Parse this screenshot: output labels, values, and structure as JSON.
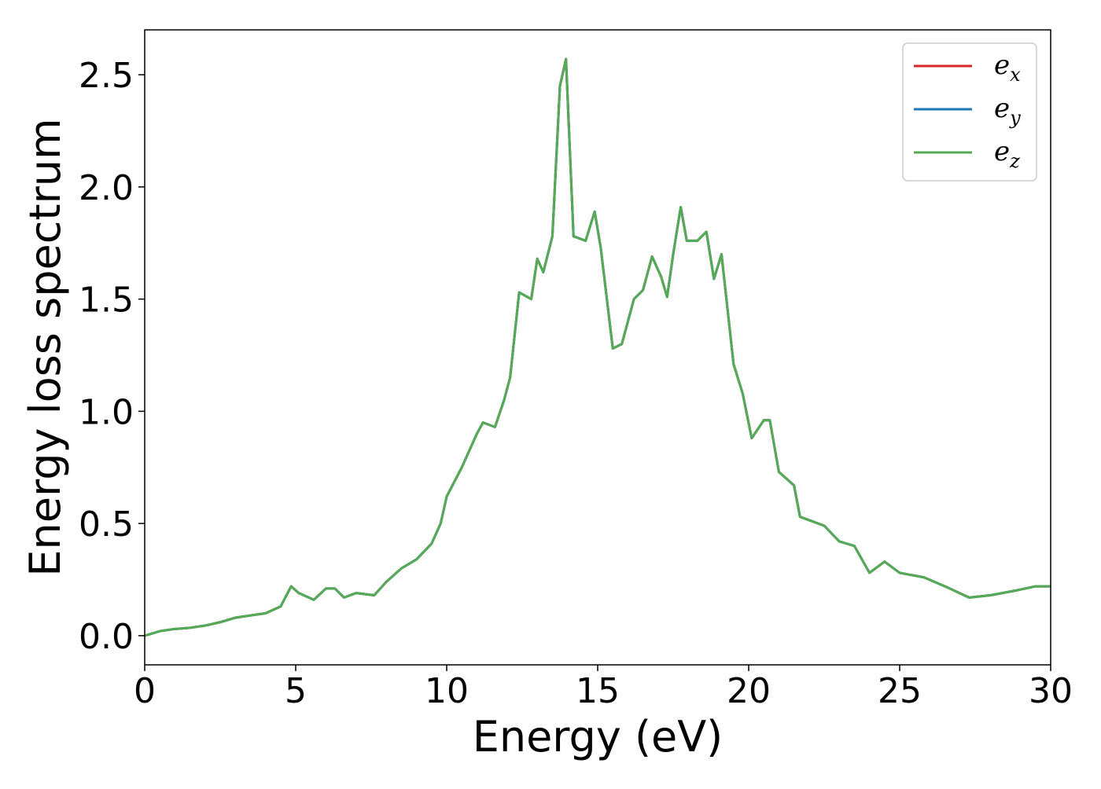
{
  "chart_data": {
    "type": "line",
    "title": "",
    "xlabel": "Energy (eV)",
    "ylabel": "Energy loss spectrum",
    "xlim": [
      0,
      30
    ],
    "ylim": [
      -0.13,
      2.7
    ],
    "xticks": [
      0,
      5,
      10,
      15,
      20,
      25,
      30
    ],
    "xtick_labels": [
      "0",
      "5",
      "10",
      "15",
      "20",
      "25",
      "30"
    ],
    "yticks": [
      0.0,
      0.5,
      1.0,
      1.5,
      2.0,
      2.5
    ],
    "ytick_labels": [
      "0.0",
      "0.5",
      "1.0",
      "1.5",
      "2.0",
      "2.5"
    ],
    "grid": false,
    "legend_position": "top-right",
    "x": [
      0,
      0.5,
      1.0,
      1.5,
      2.0,
      2.5,
      3.0,
      3.5,
      4.0,
      4.5,
      4.85,
      5.1,
      5.6,
      6.0,
      6.3,
      6.6,
      7.0,
      7.6,
      8.0,
      8.5,
      9.0,
      9.5,
      9.8,
      10.0,
      10.5,
      11.0,
      11.2,
      11.6,
      11.9,
      12.1,
      12.4,
      12.8,
      13.0,
      13.2,
      13.5,
      13.75,
      13.95,
      14.2,
      14.6,
      14.9,
      15.1,
      15.5,
      15.8,
      16.2,
      16.5,
      16.8,
      17.1,
      17.3,
      17.5,
      17.75,
      17.95,
      18.3,
      18.6,
      18.85,
      19.1,
      19.5,
      19.8,
      20.1,
      20.5,
      20.7,
      21.0,
      21.5,
      21.7,
      22.5,
      23.0,
      23.5,
      24.0,
      24.5,
      25.0,
      25.8,
      26.5,
      27.3,
      28.0,
      28.8,
      29.5,
      30.0
    ],
    "series": [
      {
        "name": "e_x",
        "color": "#d62728",
        "y": [
          0.0,
          0.02,
          0.03,
          0.035,
          0.045,
          0.06,
          0.08,
          0.09,
          0.1,
          0.13,
          0.22,
          0.19,
          0.16,
          0.21,
          0.21,
          0.17,
          0.19,
          0.18,
          0.24,
          0.3,
          0.34,
          0.41,
          0.5,
          0.62,
          0.75,
          0.9,
          0.95,
          0.93,
          1.05,
          1.15,
          1.53,
          1.5,
          1.68,
          1.62,
          1.78,
          2.45,
          2.57,
          1.78,
          1.76,
          1.89,
          1.73,
          1.28,
          1.3,
          1.5,
          1.54,
          1.69,
          1.6,
          1.51,
          1.7,
          1.91,
          1.76,
          1.76,
          1.8,
          1.59,
          1.7,
          1.21,
          1.08,
          0.88,
          0.96,
          0.96,
          0.73,
          0.67,
          0.53,
          0.49,
          0.42,
          0.4,
          0.28,
          0.33,
          0.28,
          0.26,
          0.22,
          0.17,
          0.18,
          0.2,
          0.22,
          0.22
        ]
      },
      {
        "name": "e_y",
        "color": "#1f77b4",
        "y": [
          0.0,
          0.02,
          0.03,
          0.035,
          0.045,
          0.06,
          0.08,
          0.09,
          0.1,
          0.13,
          0.22,
          0.19,
          0.16,
          0.21,
          0.21,
          0.17,
          0.19,
          0.18,
          0.24,
          0.3,
          0.34,
          0.41,
          0.5,
          0.62,
          0.75,
          0.9,
          0.95,
          0.93,
          1.05,
          1.15,
          1.53,
          1.5,
          1.68,
          1.62,
          1.78,
          2.45,
          2.57,
          1.78,
          1.76,
          1.89,
          1.73,
          1.28,
          1.3,
          1.5,
          1.54,
          1.69,
          1.6,
          1.51,
          1.7,
          1.91,
          1.76,
          1.76,
          1.8,
          1.59,
          1.7,
          1.21,
          1.08,
          0.88,
          0.96,
          0.96,
          0.73,
          0.67,
          0.53,
          0.49,
          0.42,
          0.4,
          0.28,
          0.33,
          0.28,
          0.26,
          0.22,
          0.17,
          0.18,
          0.2,
          0.22,
          0.22
        ]
      },
      {
        "name": "e_z",
        "color": "#55aa55",
        "y": [
          0.0,
          0.02,
          0.03,
          0.035,
          0.045,
          0.06,
          0.08,
          0.09,
          0.1,
          0.13,
          0.22,
          0.19,
          0.16,
          0.21,
          0.21,
          0.17,
          0.19,
          0.18,
          0.24,
          0.3,
          0.34,
          0.41,
          0.5,
          0.62,
          0.75,
          0.9,
          0.95,
          0.93,
          1.05,
          1.15,
          1.53,
          1.5,
          1.68,
          1.62,
          1.78,
          2.45,
          2.57,
          1.78,
          1.76,
          1.89,
          1.73,
          1.28,
          1.3,
          1.5,
          1.54,
          1.69,
          1.6,
          1.51,
          1.7,
          1.91,
          1.76,
          1.76,
          1.8,
          1.59,
          1.7,
          1.21,
          1.08,
          0.88,
          0.96,
          0.96,
          0.73,
          0.67,
          0.53,
          0.49,
          0.42,
          0.4,
          0.28,
          0.33,
          0.28,
          0.26,
          0.22,
          0.17,
          0.18,
          0.2,
          0.22,
          0.22
        ]
      }
    ],
    "legend": [
      {
        "base": "e",
        "sub": "x",
        "color": "#d62728"
      },
      {
        "base": "e",
        "sub": "y",
        "color": "#1f77b4"
      },
      {
        "base": "e",
        "sub": "z",
        "color": "#55aa55"
      }
    ]
  }
}
